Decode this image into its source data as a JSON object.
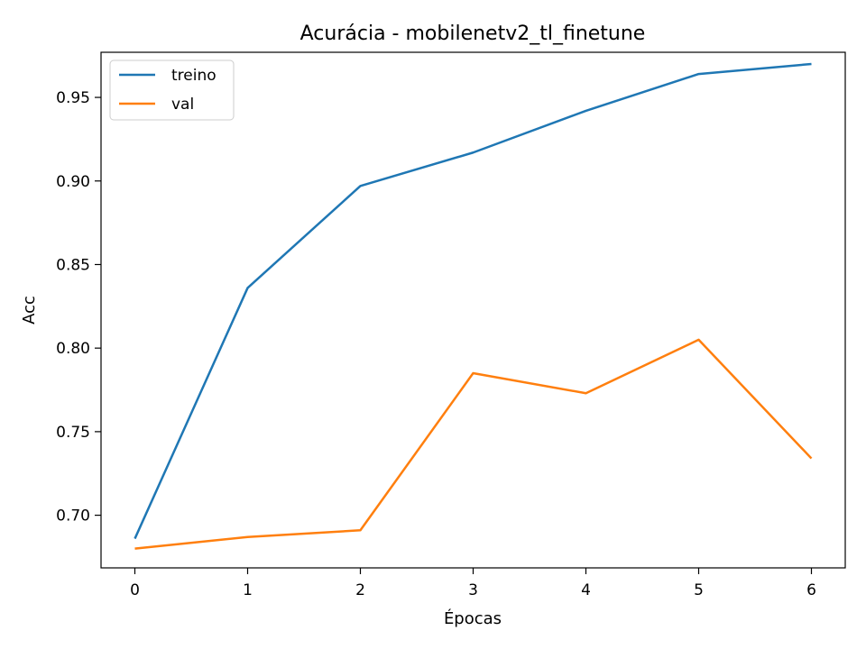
{
  "chart_data": {
    "type": "line",
    "title": "Acurácia - mobilenetv2_tl_finetune",
    "xlabel": "Épocas",
    "ylabel": "Acc",
    "x": [
      0,
      1,
      2,
      3,
      4,
      5,
      6
    ],
    "xticks": [
      "0",
      "1",
      "2",
      "3",
      "4",
      "5",
      "6"
    ],
    "yticks": [
      "0.70",
      "0.75",
      "0.80",
      "0.85",
      "0.90",
      "0.95"
    ],
    "xlim": [
      -0.3,
      6.3
    ],
    "ylim": [
      0.6685,
      0.977
    ],
    "grid": false,
    "legend_position": "top-left",
    "series": [
      {
        "name": "treino",
        "color": "#1f77b4",
        "values": [
          0.686,
          0.836,
          0.897,
          0.917,
          0.942,
          0.964,
          0.97
        ]
      },
      {
        "name": "val",
        "color": "#ff7f0e",
        "values": [
          0.68,
          0.687,
          0.691,
          0.785,
          0.773,
          0.805,
          0.734
        ]
      }
    ]
  }
}
